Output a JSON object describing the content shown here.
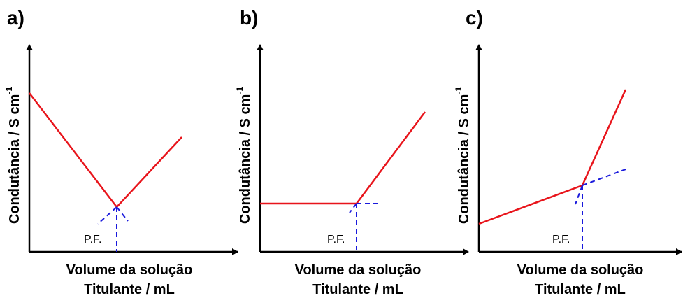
{
  "panels": [
    {
      "label": "a)",
      "y_label": "Condutância / S cm",
      "y_label_sup": "-1",
      "x_label_lines": [
        "Volume da solução",
        "Titulante / mL"
      ],
      "pf_label": "P.F."
    },
    {
      "label": "b)",
      "y_label": "Condutância / S cm",
      "y_label_sup": "-1",
      "x_label_lines": [
        "Volume da solução",
        "Titulante / mL"
      ],
      "pf_label": "P.F."
    },
    {
      "label": "c)",
      "y_label": "Condutância / S cm",
      "y_label_sup": "-1",
      "x_label_lines": [
        "Volume da solução",
        "Titulante / mL"
      ],
      "pf_label": "P.F."
    }
  ]
}
